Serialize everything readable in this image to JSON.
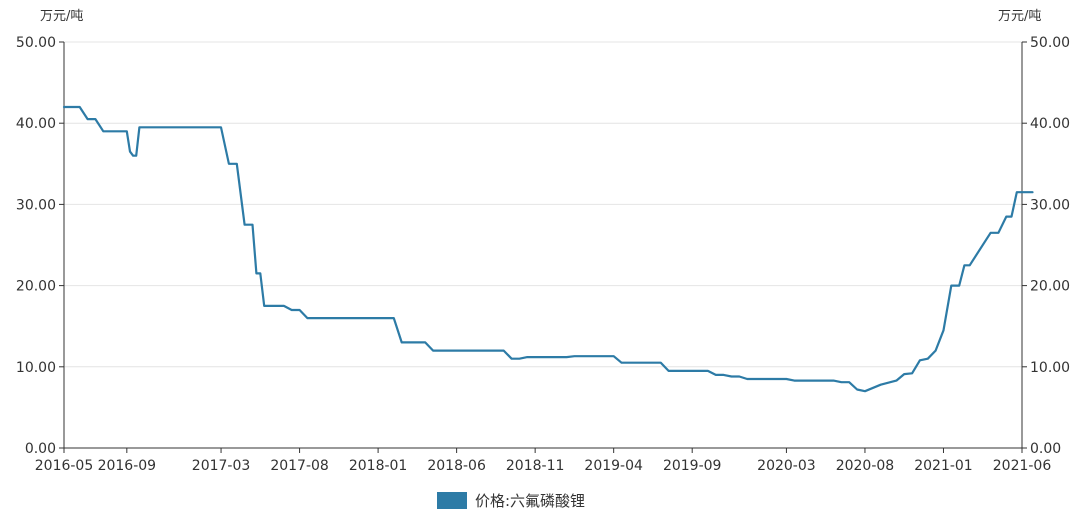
{
  "chart_data": {
    "type": "line",
    "title": "",
    "xlabel": "",
    "ylabel_left": "万元/吨",
    "ylabel_right": "万元/吨",
    "ylim": [
      0,
      50
    ],
    "yticks": [
      "0.00",
      "10.00",
      "20.00",
      "30.00",
      "40.00",
      "50.00"
    ],
    "xticks": [
      "2016-05",
      "2016-09",
      "2017-03",
      "2017-08",
      "2018-01",
      "2018-06",
      "2018-11",
      "2019-04",
      "2019-09",
      "2020-03",
      "2020-08",
      "2021-01",
      "2021-06"
    ],
    "grid": true,
    "legend_position": "bottom-center",
    "series": [
      {
        "name": "价格:六氟磷酸锂",
        "color": "#2d7ba6",
        "x": [
          "2016-05",
          "2016-06",
          "2016-06",
          "2016-07",
          "2016-07",
          "2016-09",
          "2016-09",
          "2016-09",
          "2016-09",
          "2016-09",
          "2017-03",
          "2017-03",
          "2017-04",
          "2017-04",
          "2017-05",
          "2017-05",
          "2017-05",
          "2017-05",
          "2017-07",
          "2017-07",
          "2017-08",
          "2017-08",
          "2018-02",
          "2018-02",
          "2018-04",
          "2018-04",
          "2018-09",
          "2018-09",
          "2018-10",
          "2018-10",
          "2019-01",
          "2019-01",
          "2019-04",
          "2019-04",
          "2019-07",
          "2019-07",
          "2019-10",
          "2019-10",
          "2019-11",
          "2019-11",
          "2019-12",
          "2019-12",
          "2020-03",
          "2020-03",
          "2020-06",
          "2020-06",
          "2020-07",
          "2020-07",
          "2020-08",
          "2020-09",
          "2020-10",
          "2020-10",
          "2020-11",
          "2020-11",
          "2020-12",
          "2020-12",
          "2021-01",
          "2021-01",
          "2021-02",
          "2021-02",
          "2021-02",
          "2021-04",
          "2021-04",
          "2021-05",
          "2021-05",
          "2021-05",
          "2021-06",
          "2021-06",
          "2021-06"
        ],
        "values": [
          42.0,
          42.0,
          40.5,
          40.5,
          39.0,
          39.0,
          36.5,
          36.0,
          36.0,
          39.5,
          39.5,
          35.0,
          35.0,
          27.5,
          27.5,
          21.5,
          21.5,
          17.5,
          17.5,
          17.0,
          17.0,
          16.0,
          16.0,
          13.0,
          13.0,
          12.0,
          12.0,
          11.0,
          11.0,
          11.2,
          11.2,
          11.3,
          11.3,
          10.5,
          10.5,
          9.5,
          9.5,
          9.0,
          9.0,
          8.8,
          8.8,
          8.5,
          8.5,
          8.3,
          8.3,
          8.1,
          8.1,
          7.2,
          7.0,
          7.8,
          8.3,
          9.1,
          9.2,
          10.8,
          11.0,
          12.0,
          14.5,
          20.0,
          20.0,
          22.5,
          22.5,
          26.5,
          26.5,
          28.5,
          28.5,
          31.5,
          31.5,
          31.5,
          31.5
        ]
      }
    ]
  }
}
